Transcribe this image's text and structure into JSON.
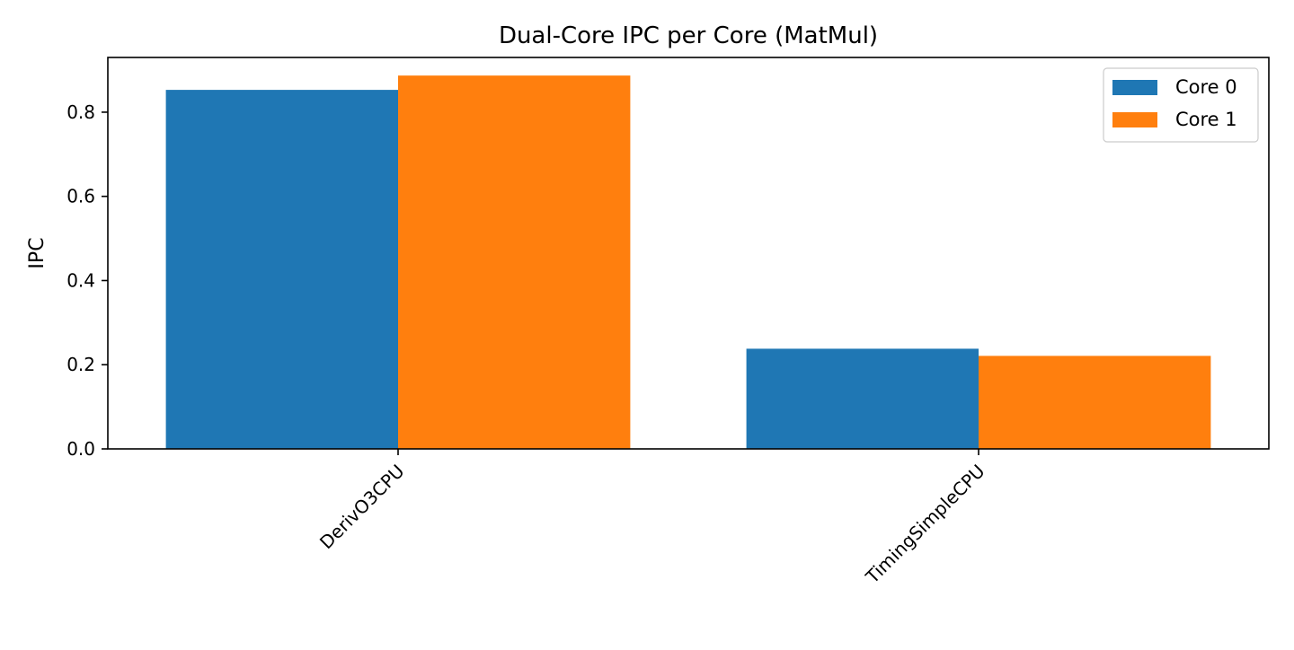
{
  "chart_data": {
    "type": "bar",
    "title": "Dual-Core IPC per Core (MatMul)",
    "xlabel": "",
    "ylabel": "IPC",
    "categories": [
      "DerivO3CPU",
      "TimingSimpleCPU"
    ],
    "series": [
      {
        "name": "Core 0",
        "values": [
          0.853,
          0.238
        ],
        "color": "#1f77b4"
      },
      {
        "name": "Core 1",
        "values": [
          0.887,
          0.221
        ],
        "color": "#ff7f0e"
      }
    ],
    "ylim": [
      0,
      0.93
    ],
    "yticks": [
      0.0,
      0.2,
      0.4,
      0.6,
      0.8
    ],
    "ytick_labels": [
      "0.0",
      "0.2",
      "0.4",
      "0.6",
      "0.8"
    ],
    "xtick_rotation_deg": 45,
    "grid": false,
    "legend_position": "top-right"
  }
}
